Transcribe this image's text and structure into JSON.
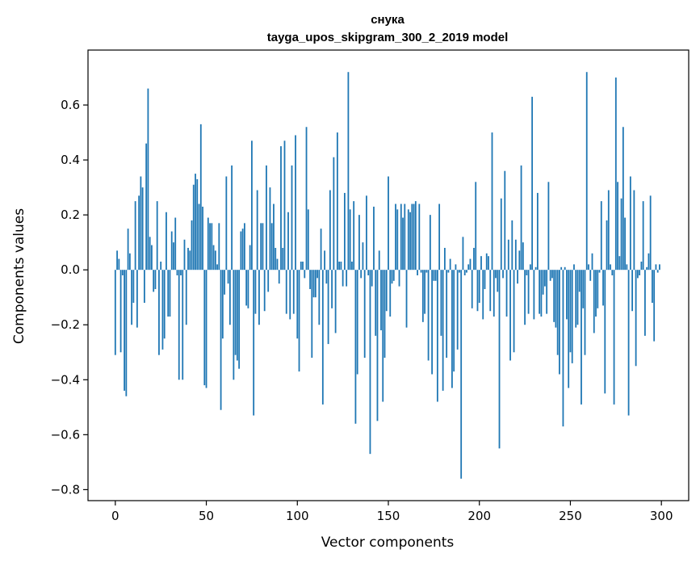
{
  "chart_data": {
    "type": "bar",
    "title_line1": "снука",
    "title_line2": "tayga_upos_skipgram_300_2_2019 model",
    "xlabel": "Vector components",
    "ylabel": "Components values",
    "xlim": [
      -15,
      315
    ],
    "ylim": [
      -0.84,
      0.8
    ],
    "xticks": [
      0,
      50,
      100,
      150,
      200,
      250,
      300
    ],
    "xtick_labels": [
      "0",
      "50",
      "100",
      "150",
      "200",
      "250",
      "300"
    ],
    "yticks": [
      -0.8,
      -0.6,
      -0.4,
      -0.2,
      0.0,
      0.2,
      0.4,
      0.6
    ],
    "ytick_labels": [
      "−0.8",
      "−0.6",
      "−0.4",
      "−0.2",
      "0.0",
      "0.2",
      "0.4",
      "0.6"
    ],
    "bar_color": "#1f77b4",
    "values": [
      -0.31,
      0.07,
      0.04,
      -0.3,
      -0.02,
      -0.44,
      -0.46,
      0.15,
      0.06,
      -0.2,
      -0.12,
      0.25,
      -0.21,
      0.27,
      0.34,
      0.3,
      -0.12,
      0.46,
      0.66,
      0.12,
      0.09,
      -0.08,
      -0.07,
      0.25,
      -0.31,
      0.03,
      -0.29,
      -0.25,
      0.21,
      -0.17,
      -0.17,
      0.14,
      0.1,
      0.19,
      -0.02,
      -0.4,
      -0.02,
      -0.4,
      0.11,
      -0.2,
      0.08,
      0.07,
      0.18,
      0.31,
      0.35,
      0.33,
      0.24,
      0.53,
      0.23,
      -0.42,
      -0.43,
      0.19,
      0.17,
      0.17,
      0.09,
      0.07,
      0.02,
      0.17,
      -0.51,
      -0.25,
      -0.09,
      0.34,
      -0.05,
      -0.2,
      0.38,
      -0.4,
      -0.31,
      -0.33,
      -0.36,
      0.14,
      0.15,
      0.17,
      -0.13,
      -0.14,
      0.09,
      0.47,
      -0.53,
      -0.16,
      0.29,
      -0.2,
      0.17,
      0.17,
      -0.15,
      0.38,
      -0.08,
      0.3,
      0.17,
      0.24,
      0.08,
      0.04,
      -0.05,
      0.45,
      0.08,
      0.47,
      -0.16,
      0.21,
      -0.18,
      0.38,
      -0.16,
      0.49,
      -0.25,
      -0.37,
      0.03,
      0.03,
      -0.03,
      0.52,
      0.22,
      -0.07,
      -0.32,
      -0.1,
      -0.1,
      -0.03,
      -0.2,
      0.15,
      -0.49,
      0.07,
      -0.05,
      -0.27,
      0.29,
      -0.14,
      0.41,
      -0.23,
      0.5,
      0.03,
      0.03,
      -0.06,
      0.28,
      -0.06,
      0.72,
      0.22,
      0.03,
      0.25,
      -0.56,
      -0.38,
      0.2,
      -0.03,
      0.1,
      -0.32,
      0.27,
      -0.02,
      -0.67,
      -0.06,
      0.23,
      -0.24,
      -0.55,
      0.07,
      -0.22,
      -0.48,
      -0.32,
      -0.15,
      0.34,
      -0.17,
      -0.05,
      -0.04,
      0.24,
      0.22,
      -0.06,
      0.24,
      0.19,
      0.24,
      -0.21,
      0.22,
      0.21,
      0.24,
      0.24,
      0.25,
      -0.02,
      0.24,
      -0.01,
      -0.19,
      -0.16,
      -0.01,
      -0.33,
      0.2,
      -0.38,
      -0.04,
      -0.04,
      -0.48,
      0.24,
      -0.24,
      -0.44,
      0.08,
      -0.32,
      -0.01,
      0.04,
      -0.43,
      -0.37,
      0.02,
      -0.29,
      -0.01,
      -0.76,
      0.12,
      -0.02,
      -0.01,
      0.02,
      0.04,
      -0.14,
      0.08,
      0.32,
      -0.15,
      -0.12,
      0.05,
      -0.18,
      -0.07,
      0.06,
      0.05,
      -0.15,
      0.5,
      -0.17,
      -0.03,
      -0.08,
      -0.65,
      0.26,
      -0.03,
      0.36,
      -0.17,
      0.11,
      -0.33,
      0.18,
      -0.3,
      0.11,
      -0.05,
      0.07,
      0.38,
      0.1,
      -0.2,
      -0.02,
      -0.16,
      0.02,
      0.63,
      -0.18,
      0.01,
      0.28,
      -0.16,
      -0.17,
      -0.09,
      -0.06,
      -0.16,
      0.32,
      -0.04,
      -0.03,
      -0.19,
      -0.21,
      -0.31,
      -0.38,
      0.01,
      -0.57,
      0.01,
      -0.18,
      -0.43,
      -0.3,
      -0.34,
      0.02,
      -0.21,
      -0.2,
      -0.08,
      -0.49,
      -0.14,
      -0.31,
      0.72,
      0.02,
      -0.04,
      0.06,
      -0.23,
      -0.17,
      -0.14,
      -0.01,
      0.25,
      -0.13,
      -0.45,
      0.18,
      0.29,
      0.02,
      -0.02,
      -0.49,
      0.7,
      0.32,
      0.05,
      0.26,
      0.52,
      0.19,
      0.02,
      -0.53,
      0.34,
      -0.15,
      0.29,
      -0.35,
      -0.03,
      -0.02,
      0.03,
      0.25,
      -0.24,
      0.01,
      0.06,
      0.27,
      -0.12,
      -0.26,
      0.02,
      -0.01,
      0.02
    ]
  }
}
